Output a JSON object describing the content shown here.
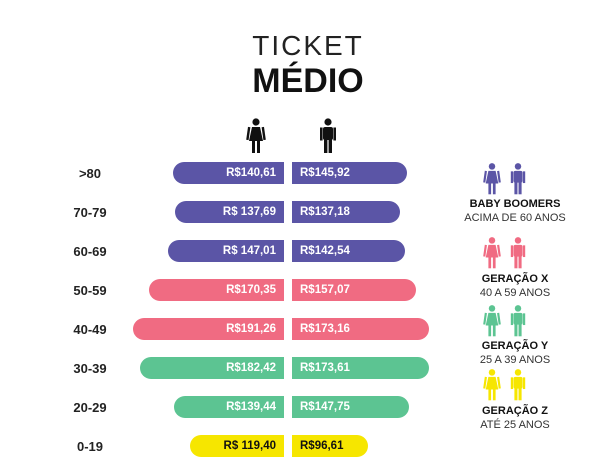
{
  "title_line1": "TICKET",
  "title_line2": "MÉDIO",
  "icons": {
    "female": "female-icon",
    "male": "male-icon"
  },
  "colors": {
    "purple": "#5b55a6",
    "pink": "#f06b82",
    "green": "#5cc492",
    "yellow": "#f6e600"
  },
  "chart_data": {
    "type": "bar",
    "categories": [
      ">80",
      "70-79",
      "60-69",
      "50-59",
      "40-49",
      "30-39",
      "20-29",
      "0-19"
    ],
    "series": [
      {
        "values": [
          140.61,
          137.69,
          147.01,
          170.35,
          191.26,
          182.42,
          139.44,
          119.4
        ],
        "labels": [
          "R$140,61",
          "R$ 137,69",
          "R$ 147,01",
          "R$170,35",
          "R$191,26",
          "R$182,42",
          "R$139,44",
          "R$ 119,40"
        ]
      },
      {
        "values": [
          145.92,
          137.18,
          142.54,
          157.07,
          173.16,
          173.61,
          147.75,
          96.61
        ],
        "labels": [
          "R$145,92",
          "R$137,18",
          "R$142,54",
          "R$157,07",
          "R$173,16",
          "R$173,61",
          "R$147,75",
          "R$96,61"
        ]
      }
    ],
    "row_colors": [
      "#5b55a6",
      "#5b55a6",
      "#5b55a6",
      "#f06b82",
      "#f06b82",
      "#5cc492",
      "#5cc492",
      "#f6e600"
    ]
  },
  "generations": [
    {
      "name": "BABY BOOMERS",
      "sub": "ACIMA DE 60 ANOS",
      "color": "#5b55a6"
    },
    {
      "name": "GERAÇÃO X",
      "sub": "40 A 59 ANOS",
      "color": "#f06b82"
    },
    {
      "name": "GERAÇÃO Y",
      "sub": "25 A 39 ANOS",
      "color": "#5cc492"
    },
    {
      "name": "GERAÇÃO Z",
      "sub": "ATÉ 25 ANOS",
      "color": "#f6e600"
    }
  ]
}
